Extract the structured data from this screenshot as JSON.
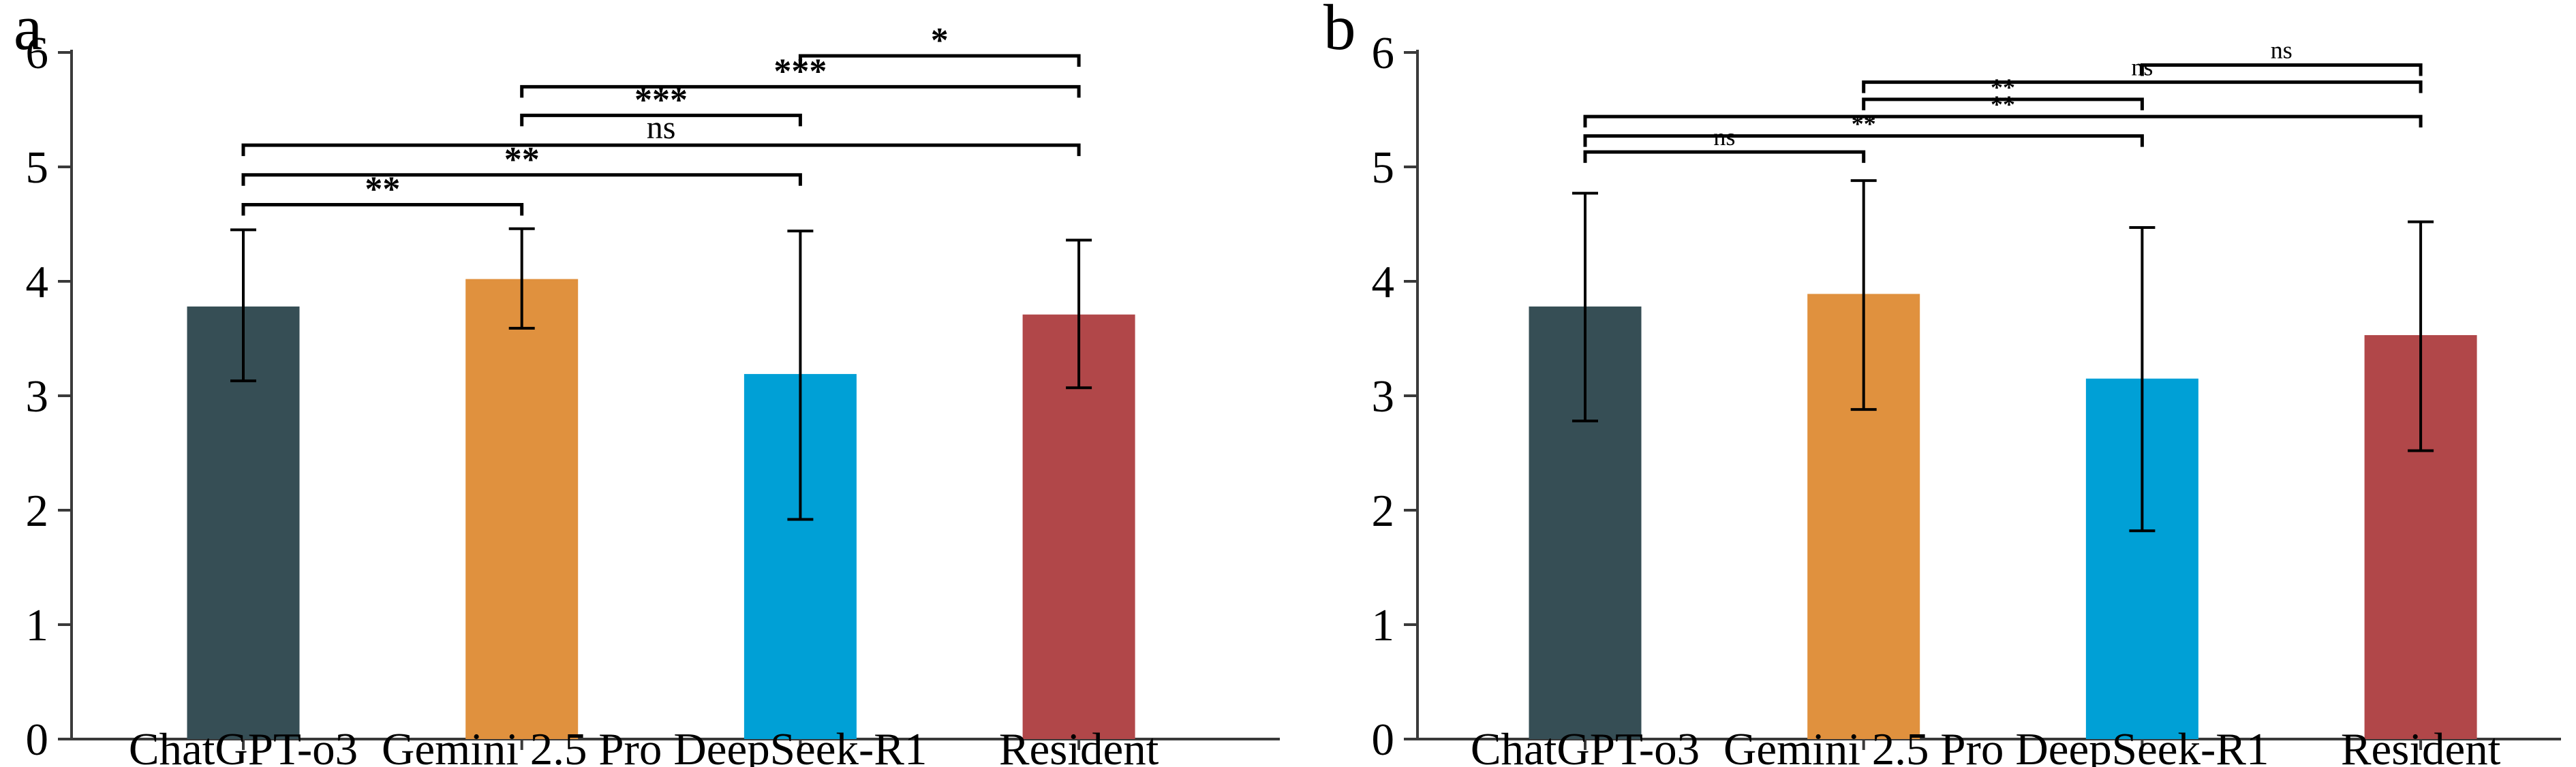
{
  "figure_title": "",
  "axis_color": "#3a3a3a",
  "chart_data": [
    {
      "type": "bar",
      "panel_label": "a",
      "title": "",
      "xlabel": "",
      "ylabel": "",
      "categories": [
        "ChatGPT-o3",
        "Gemini 2.5 Pro",
        "DeepSeek-R1",
        "Resident"
      ],
      "values": [
        3.78,
        4.02,
        3.19,
        3.71
      ],
      "error_low": [
        3.13,
        3.59,
        1.92,
        3.07
      ],
      "error_high": [
        4.45,
        4.46,
        4.44,
        4.36
      ],
      "bar_colors": [
        "#364E55",
        "#E0913E",
        "#00A0D6",
        "#B14749"
      ],
      "ylim": [
        0,
        6
      ],
      "yticks": [
        0,
        1,
        2,
        3,
        4,
        5,
        6
      ],
      "grid": false,
      "legend": "none",
      "significance_brackets": [
        {
          "groups": [
            "ChatGPT-o3",
            "Gemini 2.5 Pro"
          ],
          "pair": [
            0,
            1
          ],
          "label": "**",
          "level": 4.67
        },
        {
          "groups": [
            "ChatGPT-o3",
            "DeepSeek-R1"
          ],
          "pair": [
            0,
            2
          ],
          "label": "**",
          "level": 4.93
        },
        {
          "groups": [
            "ChatGPT-o3",
            "Resident"
          ],
          "pair": [
            0,
            3
          ],
          "label": "ns",
          "level": 5.19
        },
        {
          "groups": [
            "Gemini 2.5 Pro",
            "DeepSeek-R1"
          ],
          "pair": [
            1,
            2
          ],
          "label": "***",
          "level": 5.45
        },
        {
          "groups": [
            "Gemini 2.5 Pro",
            "Resident"
          ],
          "pair": [
            1,
            3
          ],
          "label": "***",
          "level": 5.7
        },
        {
          "groups": [
            "DeepSeek-R1",
            "Resident"
          ],
          "pair": [
            2,
            3
          ],
          "label": "*",
          "level": 5.97
        }
      ]
    },
    {
      "type": "bar",
      "panel_label": "b",
      "title": "",
      "xlabel": "",
      "ylabel": "",
      "categories": [
        "ChatGPT-o3",
        "Gemini 2.5 Pro",
        "DeepSeek-R1",
        "Resident"
      ],
      "values": [
        3.78,
        3.89,
        3.15,
        3.53
      ],
      "error_low": [
        2.78,
        2.88,
        1.82,
        2.52
      ],
      "error_high": [
        4.77,
        4.88,
        4.47,
        4.52
      ],
      "bar_colors": [
        "#364E55",
        "#E0913E",
        "#00A0D6",
        "#B14749"
      ],
      "ylim": [
        0,
        6
      ],
      "yticks": [
        0,
        1,
        2,
        3,
        4,
        5,
        6
      ],
      "grid": false,
      "legend": "none",
      "significance_brackets": [
        {
          "groups": [
            "ChatGPT-o3",
            "Gemini 2.5 Pro"
          ],
          "pair": [
            0,
            1
          ],
          "label": "ns",
          "level": 5.13
        },
        {
          "groups": [
            "ChatGPT-o3",
            "DeepSeek-R1"
          ],
          "pair": [
            0,
            2
          ],
          "label": "**",
          "level": 5.27
        },
        {
          "groups": [
            "ChatGPT-o3",
            "Resident"
          ],
          "pair": [
            0,
            3
          ],
          "label": "**",
          "level": 5.44
        },
        {
          "groups": [
            "Gemini 2.5 Pro",
            "DeepSeek-R1"
          ],
          "pair": [
            1,
            2
          ],
          "label": "**",
          "level": 5.59
        },
        {
          "groups": [
            "Gemini 2.5 Pro",
            "Resident"
          ],
          "pair": [
            1,
            3
          ],
          "label": "ns",
          "level": 5.74
        },
        {
          "groups": [
            "DeepSeek-R1",
            "Resident"
          ],
          "pair": [
            2,
            3
          ],
          "label": "ns",
          "level": 5.89
        }
      ]
    }
  ]
}
